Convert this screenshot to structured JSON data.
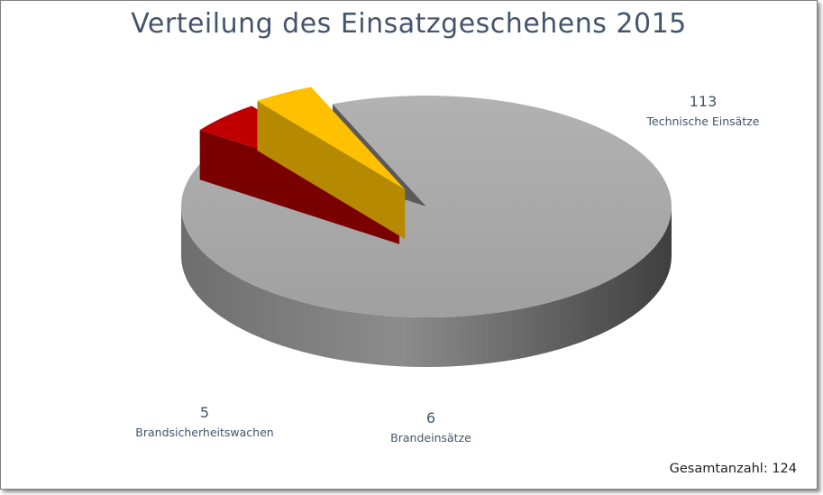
{
  "chart_data": {
    "type": "pie",
    "title": "Verteilung des Einsatzgeschehens 2015",
    "categories": [
      "Technische Einsätze",
      "Brandeinsätze",
      "Brandsicherheitswachen"
    ],
    "values": [
      113,
      6,
      5
    ],
    "labels": [
      {
        "value": "113",
        "name": "Technische Einsätze"
      },
      {
        "value": "6",
        "name": "Brandeinsätze"
      },
      {
        "value": "5",
        "name": "Brandsicherheitswachen"
      }
    ],
    "colors": [
      "#a6a6a6",
      "#c00000",
      "#ffc000"
    ],
    "exploded": [
      "Brandeinsätze",
      "Brandsicherheitswachen"
    ],
    "style": "3d",
    "legend": "none"
  },
  "footer": {
    "total_text": "Gesamtanzahl: 124"
  }
}
